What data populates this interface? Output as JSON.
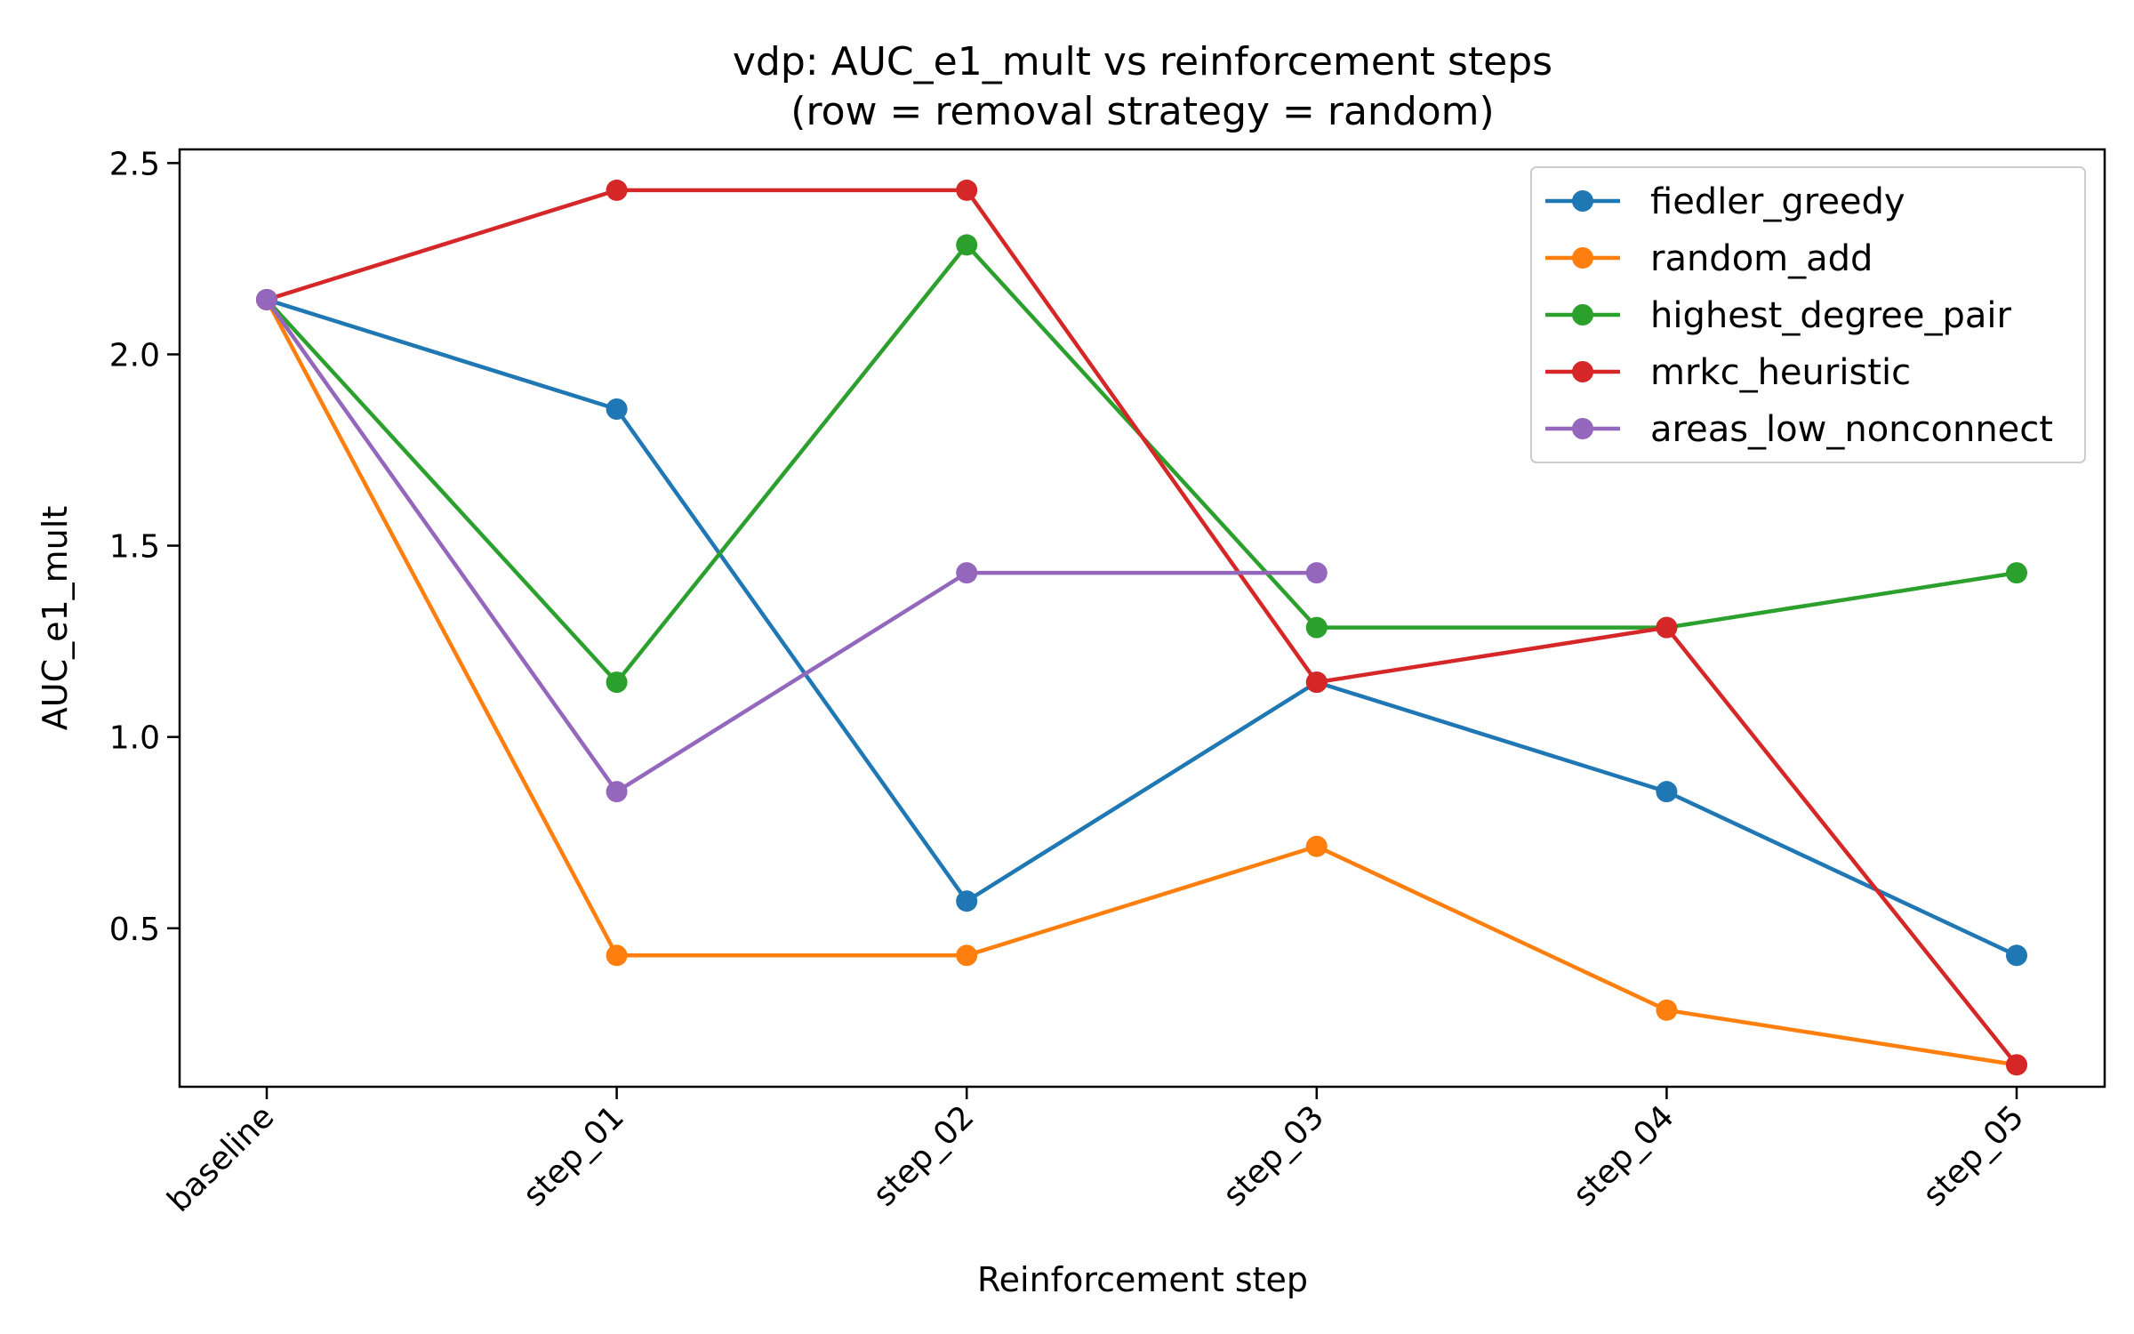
{
  "chart_data": {
    "type": "line",
    "title_line1": "vdp: AUC_e1_mult vs reinforcement steps",
    "title_line2": "(row = removal strategy = random)",
    "xlabel": "Reinforcement step",
    "ylabel": "AUC_e1_mult",
    "categories": [
      "baseline",
      "step_01",
      "step_02",
      "step_03",
      "step_04",
      "step_05"
    ],
    "ylim": [
      0.0857,
      2.5357
    ],
    "yticks": [
      0.5,
      1.0,
      1.5,
      2.0,
      2.5
    ],
    "ytick_labels": [
      "0.5",
      "1.0",
      "1.5",
      "2.0",
      "2.5"
    ],
    "grid": false,
    "legend_position": "top-right",
    "series": [
      {
        "name": "fiedler_greedy",
        "color": "#1f77b4",
        "values": [
          2.143,
          1.857,
          0.571,
          1.143,
          0.857,
          0.429
        ]
      },
      {
        "name": "random_add",
        "color": "#ff7f0e",
        "values": [
          2.143,
          0.429,
          0.429,
          0.714,
          0.286,
          0.143
        ]
      },
      {
        "name": "highest_degree_pair",
        "color": "#2ca02c",
        "values": [
          2.143,
          1.143,
          2.286,
          1.286,
          1.286,
          1.429
        ]
      },
      {
        "name": "mrkc_heuristic",
        "color": "#d62728",
        "values": [
          2.143,
          2.429,
          2.429,
          1.143,
          1.286,
          0.143
        ]
      },
      {
        "name": "areas_low_nonconnect",
        "color": "#9467bd",
        "values": [
          2.143,
          0.857,
          1.429,
          1.429,
          null,
          null
        ]
      }
    ]
  }
}
